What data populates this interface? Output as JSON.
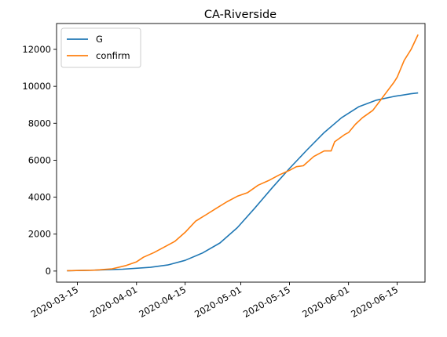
{
  "chart_data": {
    "type": "line",
    "title": "CA-Riverside",
    "xlabel": "",
    "ylabel": "",
    "x_axis": {
      "type": "date",
      "range": [
        "2020-03-09",
        "2020-06-23"
      ],
      "ticks": [
        "2020-03-15",
        "2020-04-01",
        "2020-04-15",
        "2020-05-01",
        "2020-05-15",
        "2020-06-01",
        "2020-06-15"
      ]
    },
    "y_axis": {
      "range": [
        -600,
        13400
      ],
      "ticks": [
        0,
        2000,
        4000,
        6000,
        8000,
        10000,
        12000
      ]
    },
    "grid": false,
    "legend": {
      "position": "top-left",
      "entries": [
        "G",
        "confirm"
      ]
    },
    "series": [
      {
        "name": "G",
        "color": "#1f77b4",
        "x": [
          "2020-03-12",
          "2020-03-20",
          "2020-03-28",
          "2020-04-05",
          "2020-04-10",
          "2020-04-15",
          "2020-04-20",
          "2020-04-25",
          "2020-04-30",
          "2020-05-05",
          "2020-05-10",
          "2020-05-15",
          "2020-05-20",
          "2020-05-25",
          "2020-05-30",
          "2020-06-04",
          "2020-06-09",
          "2020-06-14",
          "2020-06-19",
          "2020-06-21"
        ],
        "values": [
          20,
          50,
          100,
          200,
          330,
          580,
          980,
          1520,
          2350,
          3400,
          4500,
          5550,
          6550,
          7500,
          8300,
          8900,
          9250,
          9450,
          9600,
          9640
        ]
      },
      {
        "name": "confirm",
        "color": "#ff7f0e",
        "x": [
          "2020-03-12",
          "2020-03-20",
          "2020-03-25",
          "2020-03-29",
          "2020-04-01",
          "2020-04-03",
          "2020-04-06",
          "2020-04-09",
          "2020-04-12",
          "2020-04-15",
          "2020-04-18",
          "2020-04-21",
          "2020-04-24",
          "2020-04-27",
          "2020-04-30",
          "2020-05-03",
          "2020-05-06",
          "2020-05-09",
          "2020-05-12",
          "2020-05-15",
          "2020-05-17",
          "2020-05-19",
          "2020-05-22",
          "2020-05-25",
          "2020-05-27",
          "2020-05-28",
          "2020-05-31",
          "2020-06-01",
          "2020-06-03",
          "2020-06-05",
          "2020-06-08",
          "2020-06-10",
          "2020-06-12",
          "2020-06-14",
          "2020-06-15",
          "2020-06-17",
          "2020-06-19",
          "2020-06-21"
        ],
        "values": [
          20,
          50,
          120,
          300,
          500,
          750,
          1000,
          1300,
          1600,
          2100,
          2700,
          3050,
          3400,
          3750,
          4050,
          4250,
          4650,
          4900,
          5200,
          5450,
          5650,
          5700,
          6200,
          6500,
          6500,
          7000,
          7400,
          7500,
          7950,
          8300,
          8700,
          9200,
          9700,
          10200,
          10500,
          11400,
          12000,
          12800
        ]
      }
    ]
  }
}
